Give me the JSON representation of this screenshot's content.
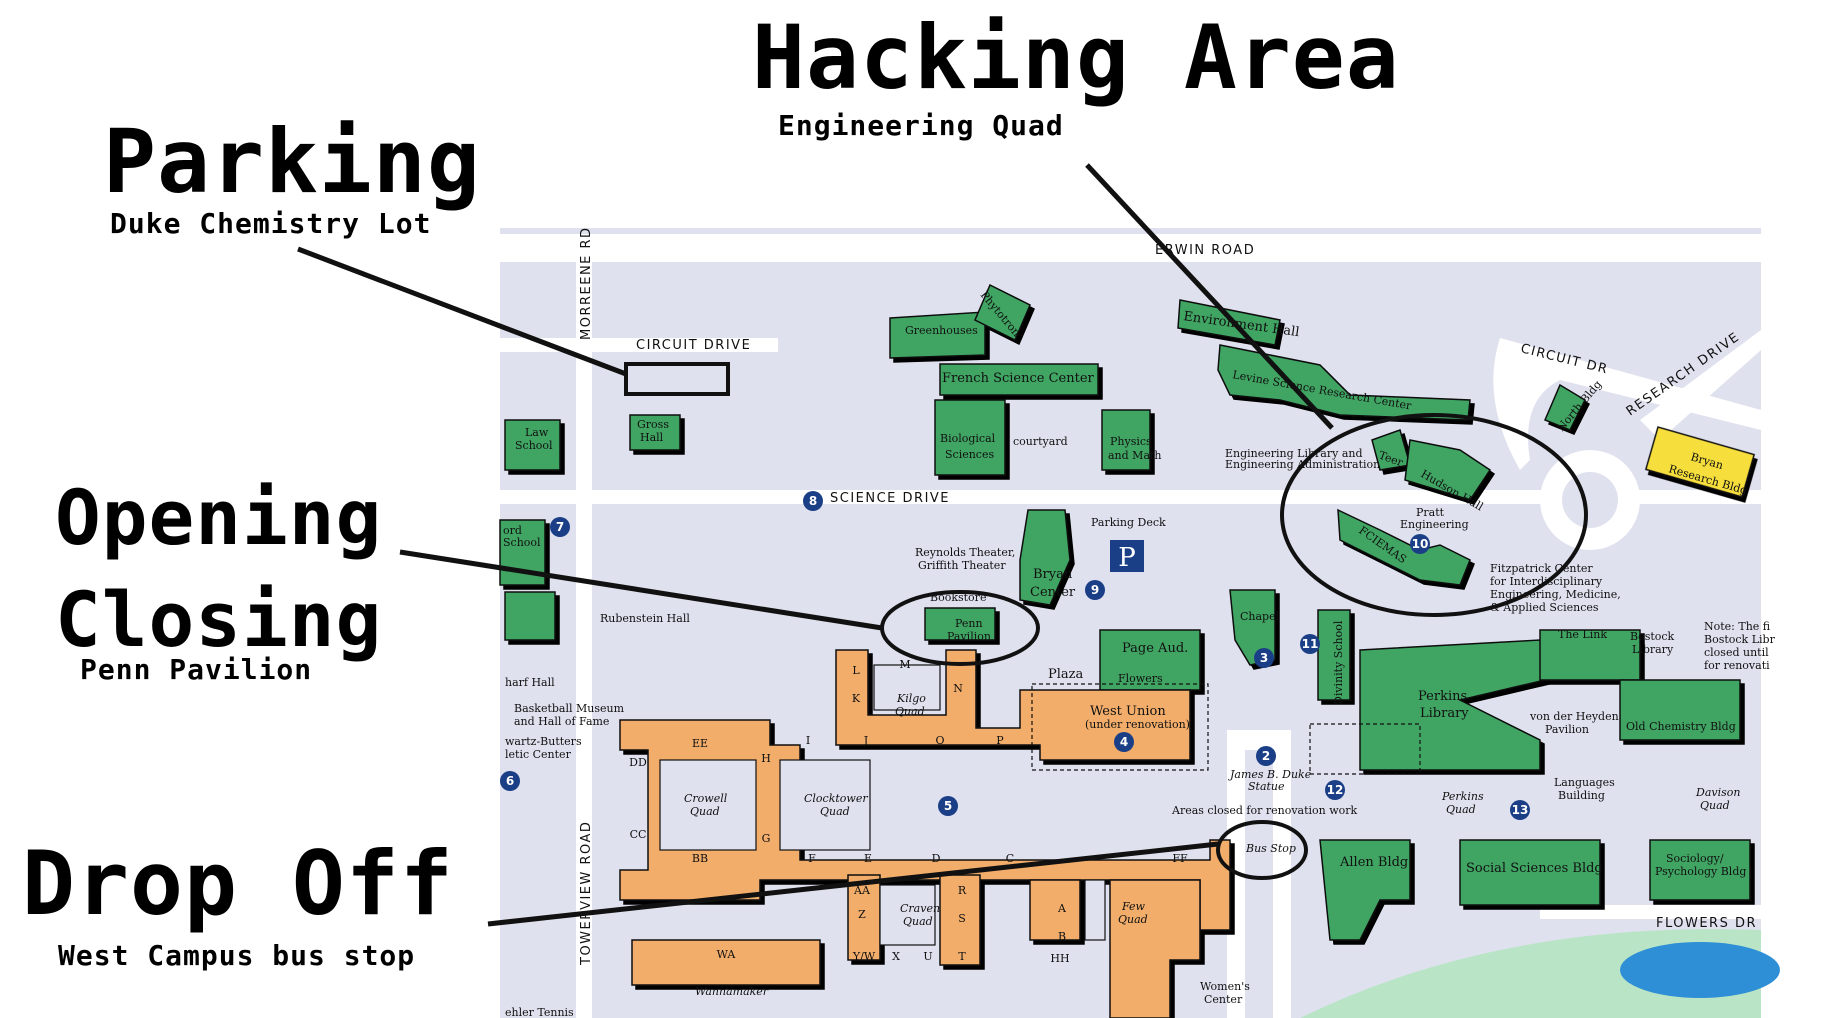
{
  "callouts": {
    "parking": {
      "title": "Parking",
      "subtitle": "Duke Chemistry Lot"
    },
    "hacking": {
      "title": "Hacking Area",
      "subtitle": "Engineering Quad"
    },
    "opening": {
      "title": "Opening",
      "title2": "Closing",
      "subtitle": "Penn Pavilion"
    },
    "dropoff": {
      "title": "Drop Off",
      "subtitle": "West Campus bus stop"
    }
  },
  "roads": {
    "erwin": "ERWIN ROAD",
    "circuit": "CIRCUIT DRIVE",
    "circuit_dr": "CIRCUIT DR",
    "research": "RESEARCH DRIVE",
    "science": "SCIENCE DRIVE",
    "morreene": "MORREENE RD",
    "towerview": "TOWERVIEW ROAD",
    "flowers": "FLOWERS DR"
  },
  "buildings": {
    "greenhouses": "Greenhouses",
    "phytotron": "Phytotron",
    "french": "French Science Center",
    "bio1": "Biological",
    "bio2": "Sciences",
    "courtyard": "courtyard",
    "phys1": "Physics",
    "phys2": "and Math",
    "env": "Environment Hall",
    "levine": "Levine Science Research Center",
    "englib1": "Engineering Library and",
    "englib2": "Engineering Administration",
    "teer": "Teer",
    "hudson": "Hudson Hall",
    "pratt1": "Pratt",
    "pratt2": "Engineering",
    "fciemas": "FCIEMAS",
    "north": "North Bldg",
    "bryanres1": "Bryan",
    "bryanres2": "Research Bldg",
    "gross1": "Gross",
    "gross2": "Hall",
    "law1": "Law",
    "law2": "School",
    "ford1": "ord",
    "ford2": "School",
    "rubenstein": "Rubenstein Hall",
    "parkingdeck": "Parking Deck",
    "reynolds1": "Reynolds Theater,",
    "reynolds2": "Griffith Theater",
    "bookstore": "Bookstore",
    "bryan1": "Bryan",
    "bryan2": "Center",
    "penn1": "Penn",
    "penn2": "Pavilion",
    "plaza": "Plaza",
    "pageaud": "Page Aud.",
    "flowers": "Flowers",
    "westunion": "West Union",
    "westunion_sub": "(under renovation)",
    "chapel": "Chapel",
    "divinity": "Divinity School",
    "perkins1": "Perkins",
    "perkins2": "Library",
    "thelink": "The Link",
    "bostock1": "Bostock",
    "bostock2": "Library",
    "note1": "Note: The fi",
    "note2": "Bostock Libr",
    "note3": "closed until",
    "note4": "for renovati",
    "fitz1": "Fitzpatrick Center",
    "fitz2": "for Interdisciplinary",
    "fitz3": "Engineering, Medicine,",
    "fitz4": "& Applied Sciences",
    "vonheyden1": "von der Heyden",
    "vonheyden2": "Pavilion",
    "oldchem": "Old Chemistry Bldg",
    "languages1": "Languages",
    "languages2": "Building",
    "perkinsquad1": "Perkins",
    "perkinsquad2": "Quad",
    "davison1": "Davison",
    "davison2": "Quad",
    "statue1": "James B. Duke",
    "statue2": "Statue",
    "areasclosed": "Areas closed for renovation work",
    "busstop": "Bus Stop",
    "allen": "Allen Bldg",
    "socsci": "Social Sciences Bldg",
    "sociology1": "Sociology/",
    "sociology2": "Psychology Bldg",
    "harf": "harf Hall",
    "bball1": "Basketball Museum",
    "bball2": "and Hall of Fame",
    "schwartz1": "wartz-Butters",
    "schwartz2": "letic Center",
    "kilgo1": "Kilgo",
    "kilgo2": "Quad",
    "crowell1": "Crowell",
    "crowell2": "Quad",
    "clocktower1": "Clocktower",
    "clocktower2": "Quad",
    "craven1": "Craven",
    "craven2": "Quad",
    "few1": "Few",
    "few2": "Quad",
    "wannamaker": "Wannamaker",
    "womens1": "Women's",
    "womens2": "Center",
    "tennis": "ehler Tennis"
  },
  "letters": [
    "L",
    "M",
    "K",
    "N",
    "I",
    "J",
    "O",
    "P",
    "EE",
    "H",
    "DD",
    "CC",
    "G",
    "BB",
    "F",
    "E",
    "D",
    "C",
    "FF",
    "AA",
    "R",
    "Z",
    "S",
    "Y/W",
    "X",
    "U",
    "T",
    "WA",
    "A",
    "B",
    "HH"
  ],
  "markers": [
    "2",
    "3",
    "4",
    "5",
    "6",
    "7",
    "8",
    "9",
    "10",
    "11",
    "12",
    "13"
  ],
  "parking_sign": "P",
  "colors": {
    "ground": "#dfe1ee",
    "green": "#3fa564",
    "orange": "#f2ad6b",
    "outline": "#111111",
    "marker": "#1b3f86",
    "bryan_research": "#f6de3c",
    "lake": "#2f8fd6",
    "grass": "#b9e5c6"
  }
}
